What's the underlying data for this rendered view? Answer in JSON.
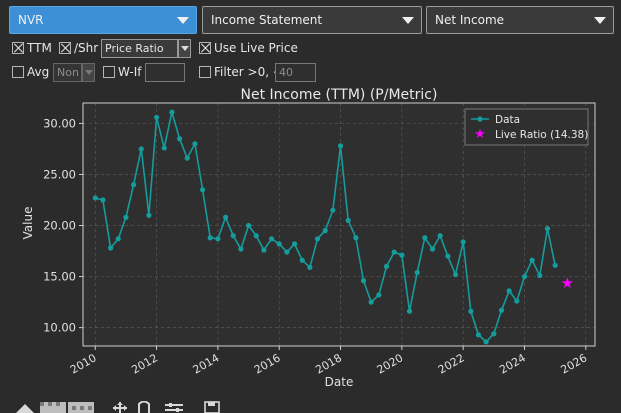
{
  "selectors": {
    "ticker": "NVR",
    "statement": "Income Statement",
    "metric": "Net Income"
  },
  "options": {
    "ttm_label": "TTM",
    "ttm_checked": true,
    "per_share_label": "/Shr",
    "per_share_checked": true,
    "ratio_mode": "Price Ratio",
    "live_price_label": "Use Live Price",
    "live_price_checked": true,
    "avg_label": "Avg",
    "avg_checked": false,
    "avg_value": "Non",
    "whatif_label": "W-If",
    "whatif_checked": false,
    "filter_label": "Filter >0, <",
    "filter_checked": false,
    "filter_value": "40"
  },
  "toolbar_icons": [
    "home-icon",
    "back-icon",
    "forward-icon",
    "pan-icon",
    "zoom-icon",
    "configure-icon",
    "save-icon"
  ],
  "colors": {
    "series": "#159c9c",
    "live_marker": "#ff00ff",
    "plot_bg": "#2f2f2f",
    "window_bg": "#2b2b2b",
    "accent": "#3d8fd6"
  },
  "chart_data": {
    "type": "line",
    "title": "Net Income (TTM) (P/Metric)",
    "xlabel": "Date",
    "ylabel": "Value",
    "xlim": [
      2009.6,
      2026.3
    ],
    "ylim": [
      8.2,
      32.0
    ],
    "xticks": [
      2010,
      2012,
      2014,
      2016,
      2018,
      2020,
      2022,
      2024,
      2026
    ],
    "yticks": [
      10.0,
      15.0,
      20.0,
      25.0,
      30.0
    ],
    "xtick_labels": [
      "2010",
      "2012",
      "2014",
      "2016",
      "2018",
      "2020",
      "2022",
      "2024",
      "2026"
    ],
    "ytick_labels": [
      "10.00",
      "15.00",
      "20.00",
      "25.00",
      "30.00"
    ],
    "grid": true,
    "legend_position": "top-right",
    "series": [
      {
        "name": "Data",
        "x": [
          2010.0,
          2010.25,
          2010.5,
          2010.75,
          2011.0,
          2011.25,
          2011.5,
          2011.75,
          2012.0,
          2012.25,
          2012.5,
          2012.75,
          2013.0,
          2013.25,
          2013.5,
          2013.75,
          2014.0,
          2014.25,
          2014.5,
          2014.75,
          2015.0,
          2015.25,
          2015.5,
          2015.75,
          2016.0,
          2016.25,
          2016.5,
          2016.75,
          2017.0,
          2017.25,
          2017.5,
          2017.75,
          2018.0,
          2018.25,
          2018.5,
          2018.75,
          2019.0,
          2019.25,
          2019.5,
          2019.75,
          2020.0,
          2020.25,
          2020.5,
          2020.75,
          2021.0,
          2021.25,
          2021.5,
          2021.75,
          2022.0,
          2022.25,
          2022.5,
          2022.75,
          2023.0,
          2023.25,
          2023.5,
          2023.75,
          2024.0,
          2024.25,
          2024.5,
          2024.75,
          2025.0
        ],
        "y": [
          22.7,
          22.5,
          17.8,
          18.7,
          20.8,
          24.0,
          27.5,
          21.0,
          30.6,
          27.6,
          31.1,
          28.5,
          26.6,
          28.0,
          23.5,
          18.8,
          18.7,
          20.8,
          19.0,
          17.7,
          20.0,
          19.0,
          17.6,
          18.7,
          18.2,
          17.4,
          18.2,
          16.6,
          15.9,
          18.7,
          19.5,
          21.5,
          27.8,
          20.5,
          18.8,
          14.6,
          12.5,
          13.2,
          16.0,
          17.4,
          17.1,
          11.6,
          15.4,
          18.8,
          17.7,
          19.0,
          17.0,
          15.2,
          18.4,
          11.6,
          9.3,
          8.6,
          9.4,
          11.7,
          13.6,
          12.6,
          15.0,
          16.6,
          15.1,
          19.7,
          16.1
        ]
      },
      {
        "name": "Live Ratio (14.38)",
        "x": [
          2025.4
        ],
        "y": [
          14.38
        ]
      }
    ]
  }
}
